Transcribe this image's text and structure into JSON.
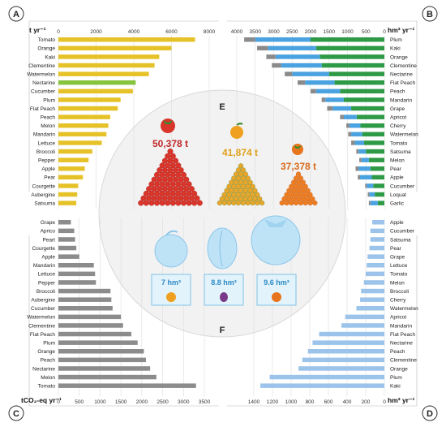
{
  "panels": {
    "A": {
      "letter": "A",
      "unit": "t yr⁻¹"
    },
    "B": {
      "letter": "B",
      "unit": "hm³ yr⁻¹"
    },
    "C": {
      "letter": "C",
      "unit": "tCO₂-eq yr⁻¹"
    },
    "D": {
      "letter": "D",
      "unit": "hm³ yr⁻¹"
    },
    "E": {
      "letter": "E"
    },
    "F": {
      "letter": "F"
    }
  },
  "colors": {
    "panelA_bar": "#e6c229",
    "panelA_highlight_nectarine": "#86c440",
    "panelA_highlight_label": "#d9d9d9",
    "panelB_green": "#2e9a46",
    "panelB_blue": "#4aa3e0",
    "panelB_grey": "#8a8a8a",
    "panelC_bar": "#8c8c8c",
    "panelD_bar": "#9cc3ea",
    "circle_fill": "#f2f2f2",
    "pink_label": "#d63384"
  },
  "center": {
    "tomato_value": "50,378 t",
    "orange_value": "41,874 t",
    "kaki_value": "37,378 t",
    "plum_area": "7 hm³",
    "grape_area": "8.8 hm³",
    "kaki_area": "9.6 hm³",
    "icons": [
      "tomato-icon",
      "orange-icon",
      "kaki-icon",
      "apple-icon",
      "plum-icon",
      "persimmon-icon"
    ]
  },
  "chart_data": [
    {
      "panel": "A",
      "type": "bar",
      "orientation": "horizontal",
      "xlim": [
        0,
        8000
      ],
      "ticks": [
        0,
        2000,
        4000,
        6000,
        8000
      ],
      "categories": [
        "Tomato",
        "Orange",
        "Kaki",
        "Clementine",
        "Watermelon",
        "Nectarine",
        "Cucumber",
        "Plum",
        "Flat Peach",
        "Peach",
        "Melon",
        "Mandarin",
        "Lettuce",
        "Broccoli",
        "Pepper",
        "Apple",
        "Pear",
        "Courgette",
        "Aubergine",
        "Satsuma"
      ],
      "values": [
        7250,
        6000,
        5350,
        5100,
        4800,
        4100,
        3950,
        3300,
        3150,
        2750,
        2650,
        2550,
        2300,
        1800,
        1600,
        1400,
        1300,
        1050,
        1000,
        950
      ],
      "label_colors": {
        "Nectarine": "#86c440",
        "Flat Peach": "#d63384",
        "Pepper": "#d63384",
        "Courgette": "#86c440"
      }
    },
    {
      "panel": "B",
      "type": "bar",
      "orientation": "horizontal-reversed",
      "stacked": true,
      "xlim": [
        0,
        4000
      ],
      "ticks": [
        4000,
        3500,
        3000,
        2500,
        2000,
        1500,
        1000,
        500,
        0
      ],
      "categories": [
        "Plum",
        "Kaki",
        "Orange",
        "Clementine",
        "Nectarine",
        "Flat Peach",
        "Peach",
        "Mandarin",
        "Grape",
        "Apricot",
        "Cherry",
        "Watermelon",
        "Tomato",
        "Satsuma",
        "Melon",
        "Pear",
        "Apple",
        "Cucumber",
        "Loquat",
        "Garlic"
      ],
      "series": [
        {
          "name": "green",
          "values": [
            2000,
            1850,
            1750,
            1700,
            1500,
            1350,
            1200,
            1100,
            900,
            750,
            650,
            600,
            550,
            500,
            420,
            380,
            340,
            300,
            260,
            180
          ]
        },
        {
          "name": "blue",
          "values": [
            1500,
            1300,
            1200,
            1100,
            1000,
            800,
            650,
            500,
            500,
            350,
            300,
            300,
            250,
            200,
            200,
            320,
            320,
            180,
            150,
            200
          ]
        },
        {
          "name": "grey",
          "values": [
            300,
            300,
            250,
            250,
            200,
            200,
            150,
            100,
            150,
            100,
            80,
            80,
            100,
            60,
            60,
            80,
            60,
            40,
            40,
            40
          ]
        }
      ]
    },
    {
      "panel": "C",
      "type": "bar",
      "orientation": "horizontal",
      "xlim": [
        0,
        3500
      ],
      "ticks": [
        0,
        500,
        1000,
        1500,
        2000,
        2500,
        3000,
        3500
      ],
      "categories": [
        "Grape",
        "Aprico",
        "Peart",
        "Courgette",
        "Apple",
        "Mandarin",
        "Lettuce",
        "Pepper",
        "Broccoli",
        "Aubergine",
        "Cucumber",
        "Watermelon",
        "Clementine",
        "Flat Peach",
        "Plum",
        "Orange",
        "Peach",
        "Nectarine",
        "Melon",
        "Tomato"
      ],
      "values": [
        300,
        380,
        400,
        430,
        500,
        850,
        880,
        900,
        1250,
        1270,
        1300,
        1500,
        1550,
        1750,
        1900,
        2050,
        2100,
        2200,
        2350,
        3300
      ]
    },
    {
      "panel": "D",
      "type": "bar",
      "orientation": "horizontal-reversed",
      "xlim": [
        0,
        1400
      ],
      "ticks": [
        1400,
        1200,
        1000,
        800,
        600,
        400,
        200,
        0
      ],
      "categories": [
        "Apple",
        "Cucumber",
        "Satsuma",
        "Pear",
        "Grape",
        "Lettuce",
        "Tomato",
        "Melon",
        "Broccoli",
        "Cherry",
        "Watermelon",
        "Apricot",
        "Mandarin",
        "Flat Peach",
        "Nectarine",
        "Peach",
        "Clementine",
        "Orange",
        "Plum",
        "Kaki"
      ],
      "values": [
        130,
        150,
        150,
        160,
        180,
        190,
        200,
        220,
        250,
        260,
        300,
        420,
        460,
        700,
        770,
        820,
        880,
        920,
        1230,
        1330
      ]
    }
  ]
}
